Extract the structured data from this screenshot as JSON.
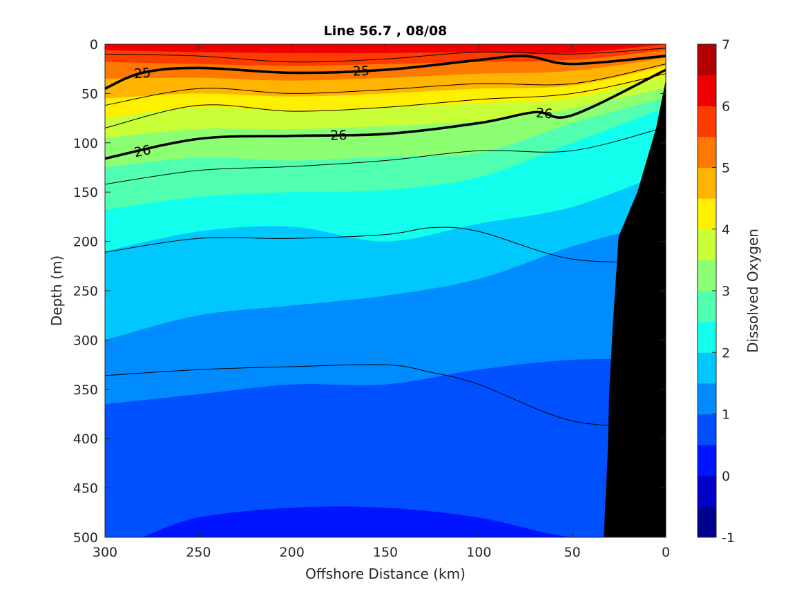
{
  "chart_data": {
    "type": "contour",
    "title": "Line 56.7 , 08/08",
    "xlabel": "Offshore Distance (km)",
    "ylabel": "Depth (m)",
    "colorbar_label": "Dissolved Oxygen",
    "xlim": [
      300,
      0
    ],
    "ylim": [
      0,
      500
    ],
    "x_ticks": [
      300,
      250,
      200,
      150,
      100,
      50,
      0
    ],
    "y_ticks": [
      0,
      50,
      100,
      150,
      200,
      250,
      300,
      350,
      400,
      450,
      500
    ],
    "colorbar": {
      "levels": [
        -1,
        -0.5,
        0,
        0.5,
        1,
        1.5,
        2,
        2.5,
        3,
        3.5,
        4,
        4.5,
        5,
        5.5,
        6,
        6.5,
        7
      ],
      "tick_labels": [
        -1,
        0,
        1,
        2,
        3,
        4,
        5,
        6,
        7
      ],
      "colors": [
        "#00008f",
        "#0000c8",
        "#0014ff",
        "#0050ff",
        "#008cff",
        "#00c8ff",
        "#12ffed",
        "#50ffaf",
        "#8cff73",
        "#c8ff37",
        "#ffef00",
        "#ffb400",
        "#ff7800",
        "#ff3c00",
        "#f00000",
        "#b40000"
      ]
    },
    "oxygen_boundaries": [
      {
        "level": 6.0,
        "x": [
          300,
          250,
          200,
          150,
          100,
          50,
          0
        ],
        "depth": [
          6,
          8,
          9,
          9,
          8,
          9,
          0
        ]
      },
      {
        "level": 5.5,
        "x": [
          300,
          250,
          200,
          150,
          100,
          50,
          0
        ],
        "depth": [
          18,
          20,
          22,
          20,
          18,
          16,
          6
        ]
      },
      {
        "level": 5.0,
        "x": [
          300,
          250,
          200,
          150,
          100,
          50,
          0
        ],
        "depth": [
          35,
          34,
          37,
          34,
          30,
          27,
          14
        ]
      },
      {
        "level": 4.5,
        "x": [
          300,
          250,
          200,
          150,
          100,
          50,
          0
        ],
        "depth": [
          55,
          50,
          53,
          50,
          45,
          42,
          22
        ]
      },
      {
        "level": 4.0,
        "x": [
          300,
          250,
          200,
          150,
          100,
          50,
          0
        ],
        "depth": [
          75,
          64,
          68,
          64,
          60,
          54,
          32
        ]
      },
      {
        "level": 3.5,
        "x": [
          300,
          250,
          200,
          150,
          100,
          50,
          0
        ],
        "depth": [
          95,
          86,
          86,
          83,
          78,
          65,
          44
        ]
      },
      {
        "level": 3.0,
        "x": [
          300,
          250,
          200,
          150,
          100,
          50,
          0
        ],
        "depth": [
          125,
          115,
          118,
          114,
          110,
          80,
          54
        ]
      },
      {
        "level": 2.5,
        "x": [
          300,
          250,
          200,
          150,
          100,
          50,
          0
        ],
        "depth": [
          168,
          155,
          150,
          148,
          135,
          100,
          64
        ]
      },
      {
        "level": 2.0,
        "x": [
          300,
          250,
          200,
          150,
          100,
          50,
          0
        ],
        "depth": [
          210,
          190,
          185,
          200,
          182,
          165,
          130
        ]
      },
      {
        "level": 1.5,
        "x": [
          300,
          250,
          200,
          150,
          100,
          50,
          0
        ],
        "depth": [
          300,
          275,
          265,
          255,
          238,
          205,
          180
        ]
      },
      {
        "level": 1.0,
        "x": [
          300,
          250,
          200,
          150,
          100,
          50,
          0
        ],
        "depth": [
          365,
          355,
          345,
          345,
          330,
          320,
          320
        ]
      },
      {
        "level": 0.5,
        "x": [
          280,
          250,
          200,
          150,
          100,
          50,
          0
        ],
        "depth": [
          500,
          480,
          470,
          470,
          480,
          500,
          500
        ]
      }
    ],
    "density_contours": [
      {
        "level": 24.5,
        "label": "",
        "bold": false,
        "x": [
          300,
          250,
          200,
          150,
          100,
          50,
          0
        ],
        "depth": [
          10,
          12,
          18,
          15,
          8,
          10,
          4
        ]
      },
      {
        "level": 25,
        "label": "25",
        "bold": true,
        "x": [
          300,
          280,
          250,
          200,
          150,
          100,
          75,
          50,
          0
        ],
        "depth": [
          45,
          29,
          24,
          29,
          26,
          16,
          12,
          20,
          12
        ]
      },
      {
        "level": 25.5,
        "label": "",
        "bold": false,
        "x": [
          300,
          250,
          200,
          150,
          100,
          50,
          0
        ],
        "depth": [
          62,
          45,
          50,
          46,
          40,
          40,
          20
        ]
      },
      {
        "level": 25.8,
        "label": "",
        "bold": false,
        "x": [
          300,
          250,
          200,
          150,
          100,
          50,
          0
        ],
        "depth": [
          85,
          62,
          68,
          64,
          56,
          50,
          30
        ]
      },
      {
        "level": 26,
        "label": "26",
        "bold": true,
        "x": [
          300,
          250,
          200,
          150,
          100,
          70,
          50,
          0
        ],
        "depth": [
          116,
          96,
          93,
          91,
          80,
          69,
          72,
          26
        ]
      },
      {
        "level": 26.3,
        "label": "",
        "bold": false,
        "x": [
          300,
          250,
          200,
          150,
          100,
          50,
          0
        ],
        "depth": [
          142,
          128,
          124,
          118,
          108,
          108,
          84
        ]
      },
      {
        "level": 26.5,
        "label": "",
        "bold": false,
        "x": [
          300,
          250,
          200,
          150,
          125,
          100,
          50,
          0
        ],
        "depth": [
          211,
          197,
          197,
          193,
          186,
          190,
          218,
          220
        ]
      },
      {
        "level": 26.8,
        "label": "",
        "bold": false,
        "x": [
          300,
          250,
          200,
          150,
          125,
          100,
          50,
          0
        ],
        "depth": [
          336,
          330,
          327,
          325,
          333,
          345,
          382,
          388
        ]
      }
    ],
    "bathymetry": {
      "x": [
        0,
        5,
        15,
        25,
        28,
        30,
        31,
        33,
        50
      ],
      "depth": [
        38,
        85,
        150,
        195,
        280,
        350,
        420,
        500,
        500
      ]
    }
  }
}
